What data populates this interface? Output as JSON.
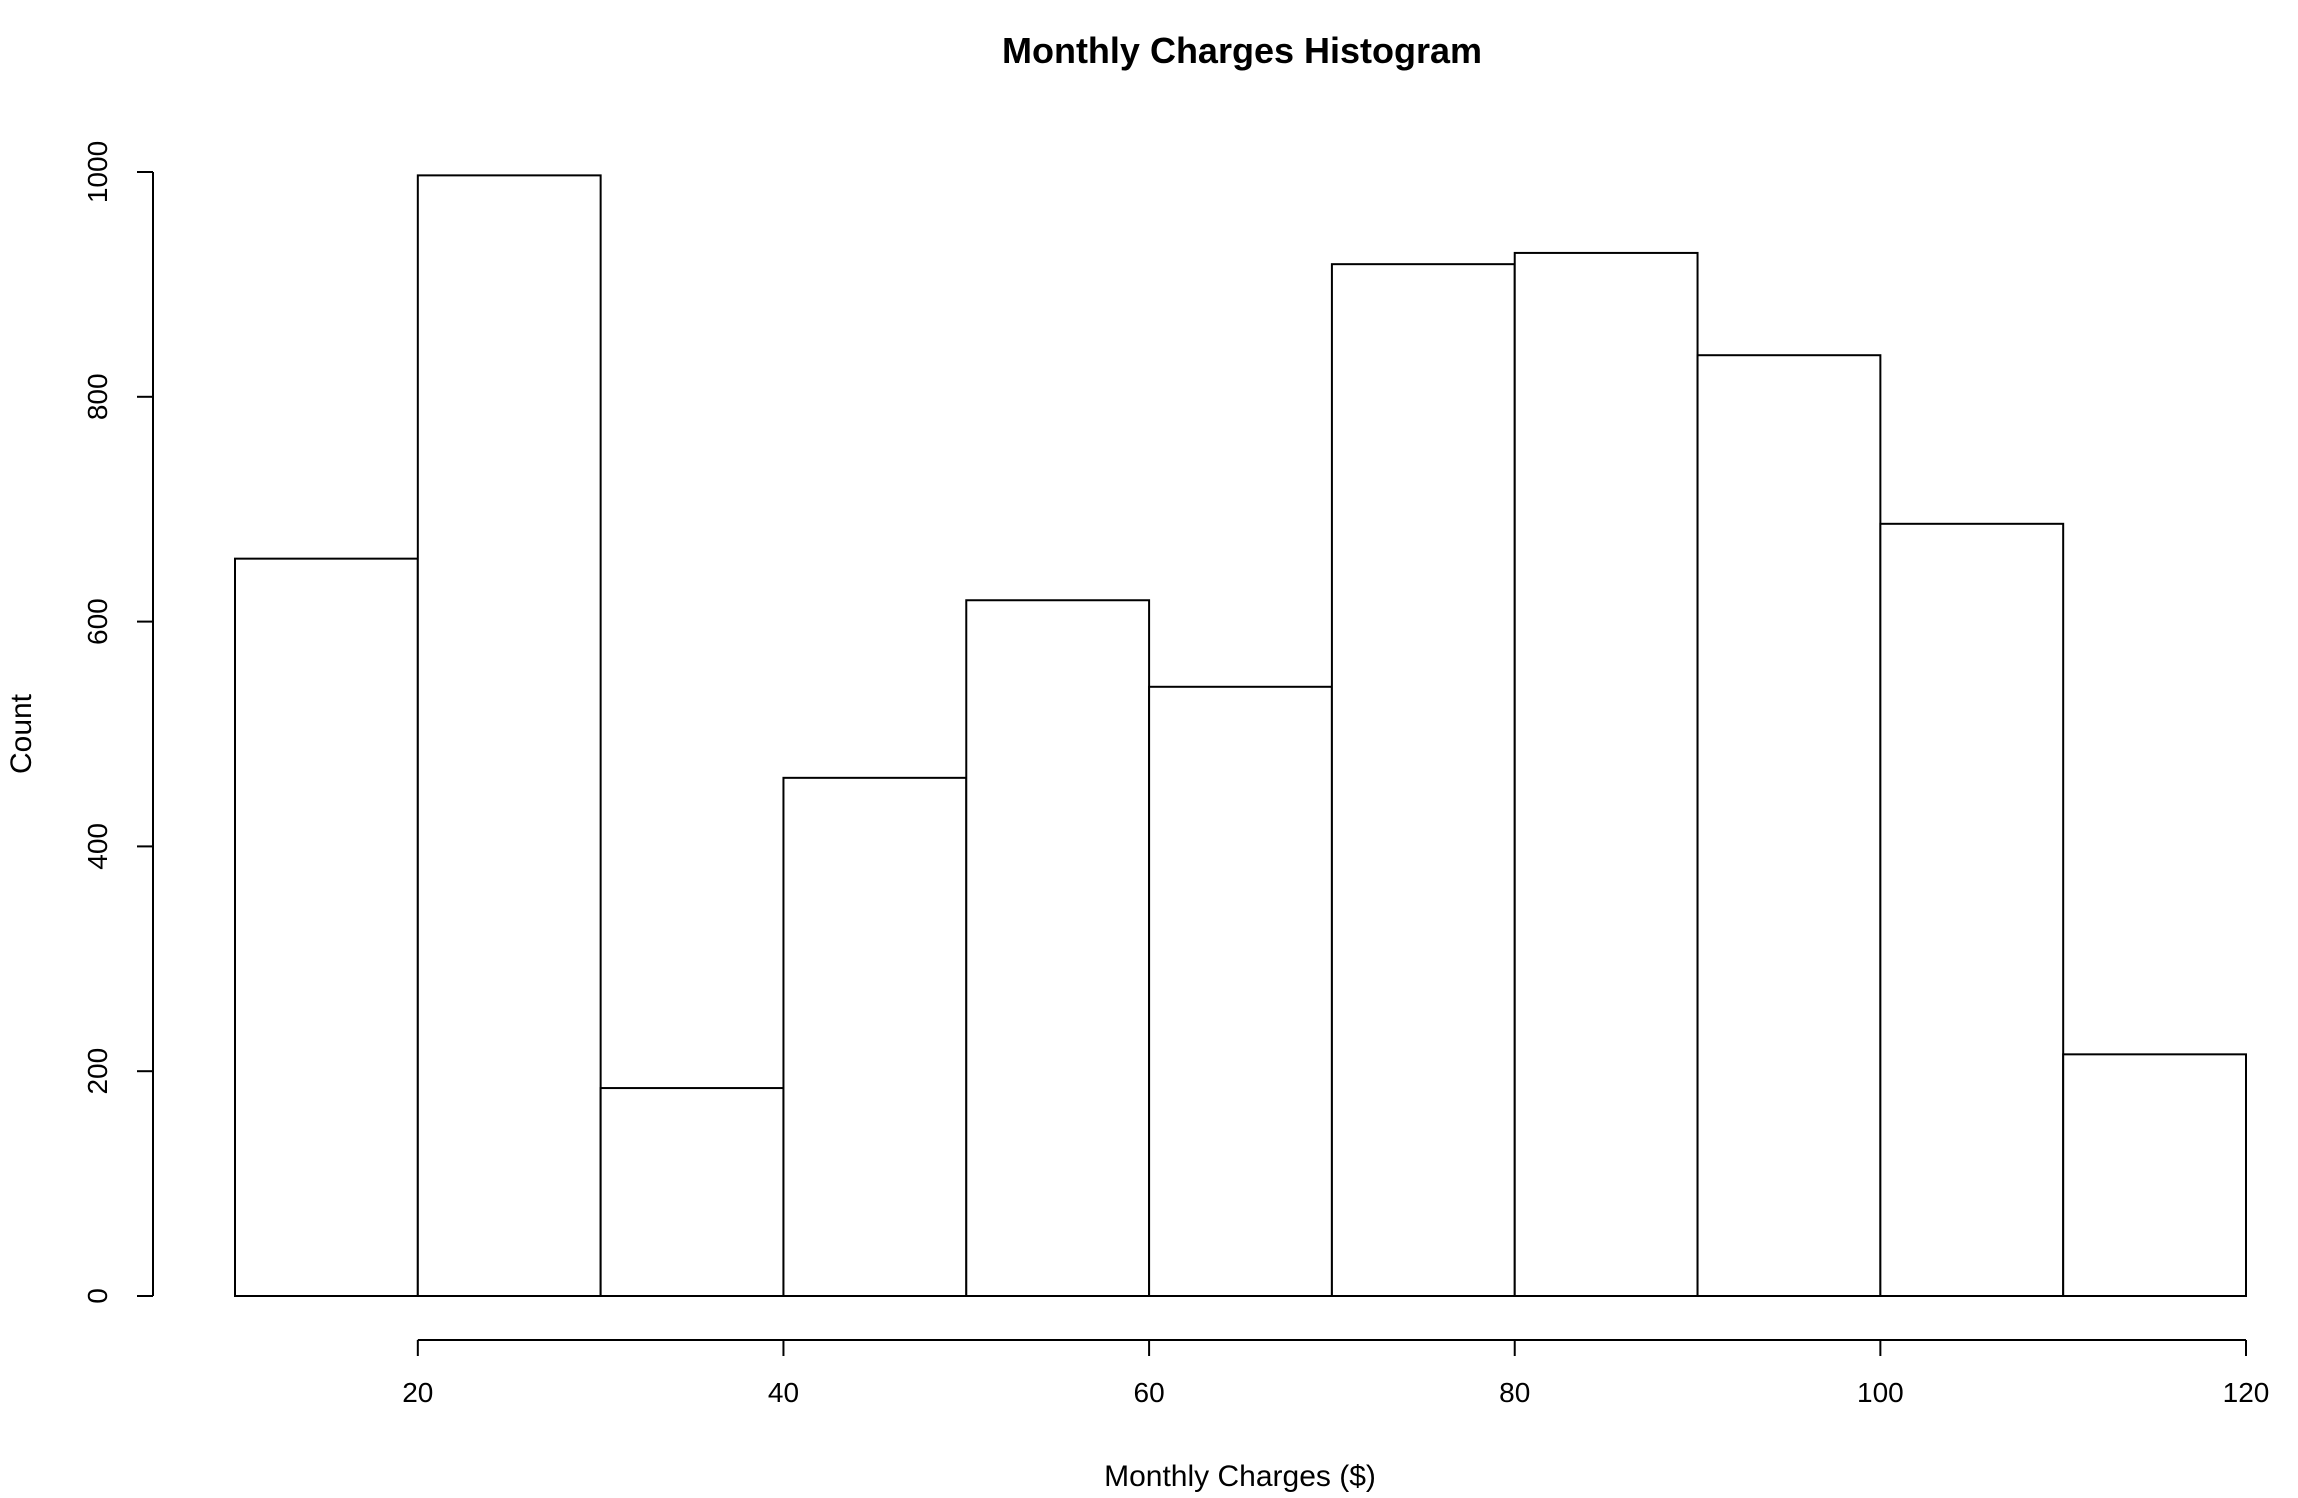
{
  "chart_data": {
    "type": "bar",
    "title": "Monthly Charges Histogram",
    "xlabel": "Monthly Charges ($)",
    "ylabel": "Count",
    "bins": [
      {
        "start": 10,
        "end": 20,
        "count": 656
      },
      {
        "start": 20,
        "end": 30,
        "count": 997
      },
      {
        "start": 30,
        "end": 40,
        "count": 185
      },
      {
        "start": 40,
        "end": 50,
        "count": 461
      },
      {
        "start": 50,
        "end": 60,
        "count": 619
      },
      {
        "start": 60,
        "end": 70,
        "count": 542
      },
      {
        "start": 70,
        "end": 80,
        "count": 918
      },
      {
        "start": 80,
        "end": 90,
        "count": 928
      },
      {
        "start": 90,
        "end": 100,
        "count": 837
      },
      {
        "start": 100,
        "end": 110,
        "count": 687
      },
      {
        "start": 110,
        "end": 120,
        "count": 215
      }
    ],
    "xlim": [
      10,
      120
    ],
    "ylim": [
      0,
      1000
    ],
    "x_ticks": [
      20,
      40,
      60,
      80,
      100,
      120
    ],
    "y_ticks": [
      0,
      200,
      400,
      600,
      800,
      1000
    ],
    "colors": {
      "bar_fill": "#ffffff",
      "bar_stroke": "#000000",
      "axis": "#000000",
      "background": "#ffffff"
    },
    "grid": false
  }
}
